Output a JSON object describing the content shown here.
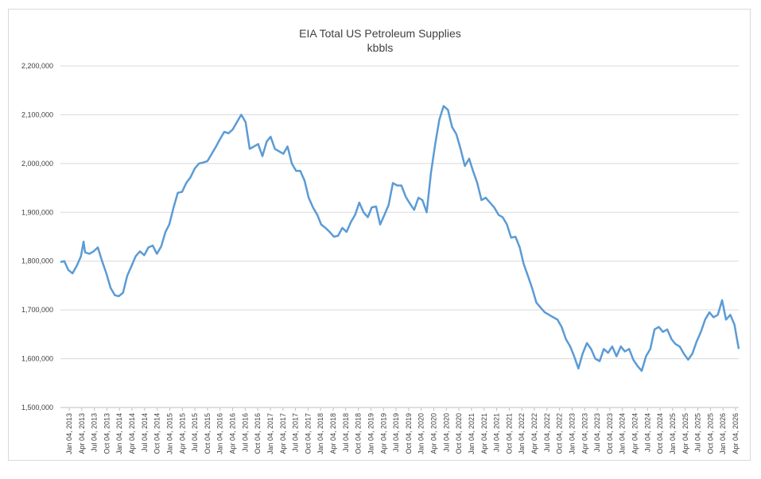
{
  "chart_data": {
    "type": "line",
    "title": "EIA Total US Petroleum Supplies",
    "subtitle": "kbbls",
    "xlabel": "",
    "ylabel": "",
    "ylim": [
      1500000,
      2200000
    ],
    "yticks": [
      "1,500,000",
      "1,600,000",
      "1,700,000",
      "1,800,000",
      "1,900,000",
      "2,000,000",
      "2,100,000",
      "2,200,000"
    ],
    "xticks": [
      "Jan 04, 2013",
      "Apr 04, 2013",
      "Jul 04, 2013",
      "Oct 04, 2013",
      "Jan 04, 2014",
      "Apr 04, 2014",
      "Jul 04, 2014",
      "Oct 04, 2014",
      "Jan 04, 2015",
      "Apr 04, 2015",
      "Jul 04, 2015",
      "Oct 04, 2015",
      "Jan 04, 2016",
      "Apr 04, 2016",
      "Jul 04, 2016",
      "Oct 04, 2016",
      "Jan 04, 2017",
      "Apr 04, 2017",
      "Jul 04, 2017",
      "Oct 04, 2017",
      "Jan 04, 2018",
      "Apr 04, 2018",
      "Jul 04, 2018",
      "Oct 04, 2018",
      "Jan 04, 2019",
      "Apr 04, 2019",
      "Jul 04, 2019",
      "Oct 04, 2019",
      "Jan 04, 2020",
      "Apr 04, 2020",
      "Jul 04, 2020",
      "Oct 04, 2020",
      "Jan 04, 2021",
      "Apr 04, 2021",
      "Jul 04, 2021",
      "Oct 04, 2021",
      "Jan 04, 2022",
      "Apr 04, 2022",
      "Jul 04, 2022",
      "Oct 04, 2022",
      "Jan 04, 2023",
      "Apr 04, 2023",
      "Jul 04, 2023",
      "Oct 04, 2023",
      "Jan 04, 2024",
      "Apr 04, 2024",
      "Jul 04, 2024",
      "Oct 04, 2024",
      "Jan 04, 2025",
      "Apr 04, 2025",
      "Jul 04, 2025",
      "Oct 04, 2025",
      "Jan 04, 2026",
      "Apr 04, 2026"
    ],
    "series_color": "#5b9bd5",
    "grid": true,
    "legend": "none",
    "points": [
      [
        "2013-01-04",
        1798000
      ],
      [
        "2013-02-01",
        1800000
      ],
      [
        "2013-03-01",
        1782000
      ],
      [
        "2013-04-01",
        1775000
      ],
      [
        "2013-05-01",
        1790000
      ],
      [
        "2013-06-01",
        1810000
      ],
      [
        "2013-06-20",
        1840000
      ],
      [
        "2013-07-01",
        1818000
      ],
      [
        "2013-08-01",
        1815000
      ],
      [
        "2013-09-01",
        1820000
      ],
      [
        "2013-10-01",
        1828000
      ],
      [
        "2013-11-01",
        1800000
      ],
      [
        "2013-12-01",
        1775000
      ],
      [
        "2014-01-01",
        1745000
      ],
      [
        "2014-02-01",
        1730000
      ],
      [
        "2014-03-01",
        1728000
      ],
      [
        "2014-04-01",
        1735000
      ],
      [
        "2014-05-01",
        1770000
      ],
      [
        "2014-06-01",
        1790000
      ],
      [
        "2014-07-01",
        1810000
      ],
      [
        "2014-08-01",
        1820000
      ],
      [
        "2014-09-01",
        1812000
      ],
      [
        "2014-10-01",
        1828000
      ],
      [
        "2014-11-01",
        1832000
      ],
      [
        "2014-12-01",
        1815000
      ],
      [
        "2015-01-01",
        1830000
      ],
      [
        "2015-02-01",
        1860000
      ],
      [
        "2015-03-01",
        1875000
      ],
      [
        "2015-04-01",
        1910000
      ],
      [
        "2015-05-01",
        1940000
      ],
      [
        "2015-06-01",
        1942000
      ],
      [
        "2015-07-01",
        1960000
      ],
      [
        "2015-08-01",
        1972000
      ],
      [
        "2015-09-01",
        1990000
      ],
      [
        "2015-10-01",
        2000000
      ],
      [
        "2015-11-01",
        2002000
      ],
      [
        "2015-12-01",
        2005000
      ],
      [
        "2016-01-01",
        2020000
      ],
      [
        "2016-02-01",
        2035000
      ],
      [
        "2016-03-01",
        2050000
      ],
      [
        "2016-04-01",
        2065000
      ],
      [
        "2016-05-01",
        2062000
      ],
      [
        "2016-06-01",
        2070000
      ],
      [
        "2016-07-01",
        2085000
      ],
      [
        "2016-08-01",
        2100000
      ],
      [
        "2016-09-01",
        2085000
      ],
      [
        "2016-10-01",
        2030000
      ],
      [
        "2016-11-01",
        2035000
      ],
      [
        "2016-12-01",
        2040000
      ],
      [
        "2017-01-01",
        2015000
      ],
      [
        "2017-02-01",
        2045000
      ],
      [
        "2017-03-01",
        2055000
      ],
      [
        "2017-04-01",
        2030000
      ],
      [
        "2017-05-01",
        2025000
      ],
      [
        "2017-06-01",
        2020000
      ],
      [
        "2017-07-01",
        2035000
      ],
      [
        "2017-08-01",
        2000000
      ],
      [
        "2017-09-01",
        1985000
      ],
      [
        "2017-10-01",
        1985000
      ],
      [
        "2017-11-01",
        1965000
      ],
      [
        "2017-12-01",
        1930000
      ],
      [
        "2018-01-01",
        1910000
      ],
      [
        "2018-02-01",
        1895000
      ],
      [
        "2018-03-01",
        1875000
      ],
      [
        "2018-04-01",
        1868000
      ],
      [
        "2018-05-01",
        1860000
      ],
      [
        "2018-06-01",
        1850000
      ],
      [
        "2018-07-01",
        1852000
      ],
      [
        "2018-08-01",
        1868000
      ],
      [
        "2018-09-01",
        1860000
      ],
      [
        "2018-10-01",
        1880000
      ],
      [
        "2018-11-01",
        1895000
      ],
      [
        "2018-12-01",
        1920000
      ],
      [
        "2019-01-01",
        1900000
      ],
      [
        "2019-02-01",
        1890000
      ],
      [
        "2019-03-01",
        1910000
      ],
      [
        "2019-04-01",
        1912000
      ],
      [
        "2019-05-01",
        1875000
      ],
      [
        "2019-06-01",
        1895000
      ],
      [
        "2019-07-01",
        1915000
      ],
      [
        "2019-08-01",
        1960000
      ],
      [
        "2019-09-01",
        1955000
      ],
      [
        "2019-10-01",
        1955000
      ],
      [
        "2019-11-01",
        1932000
      ],
      [
        "2019-12-01",
        1918000
      ],
      [
        "2020-01-01",
        1905000
      ],
      [
        "2020-02-01",
        1930000
      ],
      [
        "2020-03-01",
        1925000
      ],
      [
        "2020-04-01",
        1900000
      ],
      [
        "2020-05-01",
        1980000
      ],
      [
        "2020-06-01",
        2040000
      ],
      [
        "2020-07-01",
        2090000
      ],
      [
        "2020-08-01",
        2118000
      ],
      [
        "2020-09-01",
        2110000
      ],
      [
        "2020-10-01",
        2075000
      ],
      [
        "2020-11-01",
        2060000
      ],
      [
        "2020-12-01",
        2030000
      ],
      [
        "2021-01-01",
        1995000
      ],
      [
        "2021-02-01",
        2010000
      ],
      [
        "2021-03-01",
        1985000
      ],
      [
        "2021-04-01",
        1960000
      ],
      [
        "2021-05-01",
        1925000
      ],
      [
        "2021-06-01",
        1930000
      ],
      [
        "2021-07-01",
        1920000
      ],
      [
        "2021-08-01",
        1910000
      ],
      [
        "2021-09-01",
        1895000
      ],
      [
        "2021-10-01",
        1890000
      ],
      [
        "2021-11-01",
        1875000
      ],
      [
        "2021-12-01",
        1848000
      ],
      [
        "2022-01-01",
        1850000
      ],
      [
        "2022-02-01",
        1828000
      ],
      [
        "2022-03-01",
        1795000
      ],
      [
        "2022-04-01",
        1770000
      ],
      [
        "2022-05-01",
        1745000
      ],
      [
        "2022-06-01",
        1715000
      ],
      [
        "2022-07-01",
        1705000
      ],
      [
        "2022-08-01",
        1695000
      ],
      [
        "2022-09-01",
        1690000
      ],
      [
        "2022-10-01",
        1685000
      ],
      [
        "2022-11-01",
        1680000
      ],
      [
        "2022-12-01",
        1665000
      ],
      [
        "2023-01-01",
        1640000
      ],
      [
        "2023-02-01",
        1625000
      ],
      [
        "2023-03-01",
        1605000
      ],
      [
        "2023-04-01",
        1580000
      ],
      [
        "2023-05-01",
        1610000
      ],
      [
        "2023-06-01",
        1632000
      ],
      [
        "2023-07-01",
        1620000
      ],
      [
        "2023-08-01",
        1600000
      ],
      [
        "2023-09-01",
        1595000
      ],
      [
        "2023-10-01",
        1620000
      ],
      [
        "2023-11-01",
        1612000
      ],
      [
        "2023-12-01",
        1625000
      ],
      [
        "2024-01-01",
        1605000
      ],
      [
        "2024-02-01",
        1625000
      ],
      [
        "2024-03-01",
        1615000
      ],
      [
        "2024-04-01",
        1620000
      ],
      [
        "2024-05-01",
        1598000
      ],
      [
        "2024-06-01",
        1585000
      ],
      [
        "2024-07-01",
        1575000
      ],
      [
        "2024-08-01",
        1605000
      ],
      [
        "2024-09-01",
        1620000
      ],
      [
        "2024-10-01",
        1660000
      ],
      [
        "2024-11-01",
        1665000
      ],
      [
        "2024-12-01",
        1655000
      ],
      [
        "2025-01-01",
        1660000
      ],
      [
        "2025-02-01",
        1640000
      ],
      [
        "2025-03-01",
        1630000
      ],
      [
        "2025-04-01",
        1625000
      ],
      [
        "2025-05-01",
        1610000
      ],
      [
        "2025-06-01",
        1598000
      ],
      [
        "2025-07-01",
        1610000
      ],
      [
        "2025-08-01",
        1635000
      ],
      [
        "2025-09-01",
        1655000
      ],
      [
        "2025-10-01",
        1680000
      ],
      [
        "2025-11-01",
        1695000
      ],
      [
        "2025-12-01",
        1685000
      ],
      [
        "2026-01-01",
        1690000
      ],
      [
        "2026-02-01",
        1720000
      ],
      [
        "2026-03-01",
        1680000
      ],
      [
        "2026-04-01",
        1690000
      ],
      [
        "2026-05-01",
        1670000
      ],
      [
        "2026-06-01",
        1620000
      ]
    ]
  }
}
